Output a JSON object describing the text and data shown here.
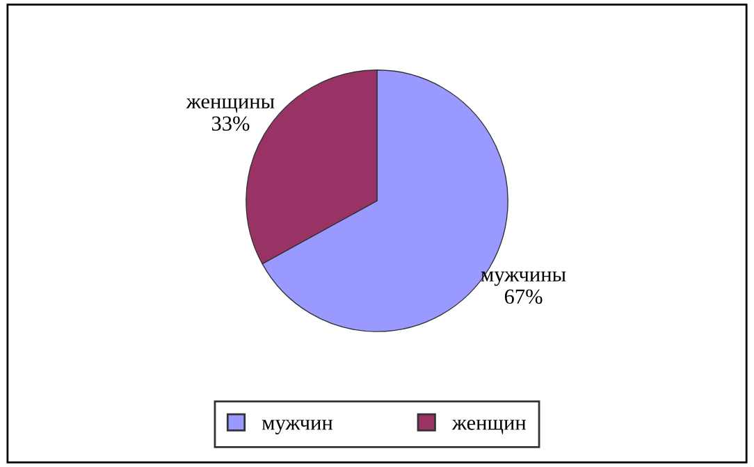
{
  "chart_data": {
    "type": "pie",
    "categories": [
      "мужчин",
      "женщин"
    ],
    "values": [
      67,
      33
    ],
    "colors": [
      "#9999ff",
      "#993366"
    ],
    "value_labels": [
      "мужчины\n67%",
      "женщины\n33%"
    ],
    "legend": "bottom"
  }
}
